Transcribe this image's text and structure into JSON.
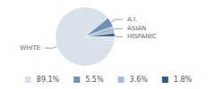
{
  "chart_data": {
    "type": "pie",
    "categories": [
      "WHITE",
      "A.I.",
      "ASIAN",
      "HISPANIC"
    ],
    "values": [
      89.1,
      5.5,
      3.6,
      1.8
    ],
    "value_labels": [
      "89.1%",
      "5.5%",
      "3.6%",
      "1.8%"
    ],
    "colors": [
      "#d9e1ea",
      "#6f8fb4",
      "#a9bdd3",
      "#2d5a86"
    ],
    "legend": "bottom"
  }
}
